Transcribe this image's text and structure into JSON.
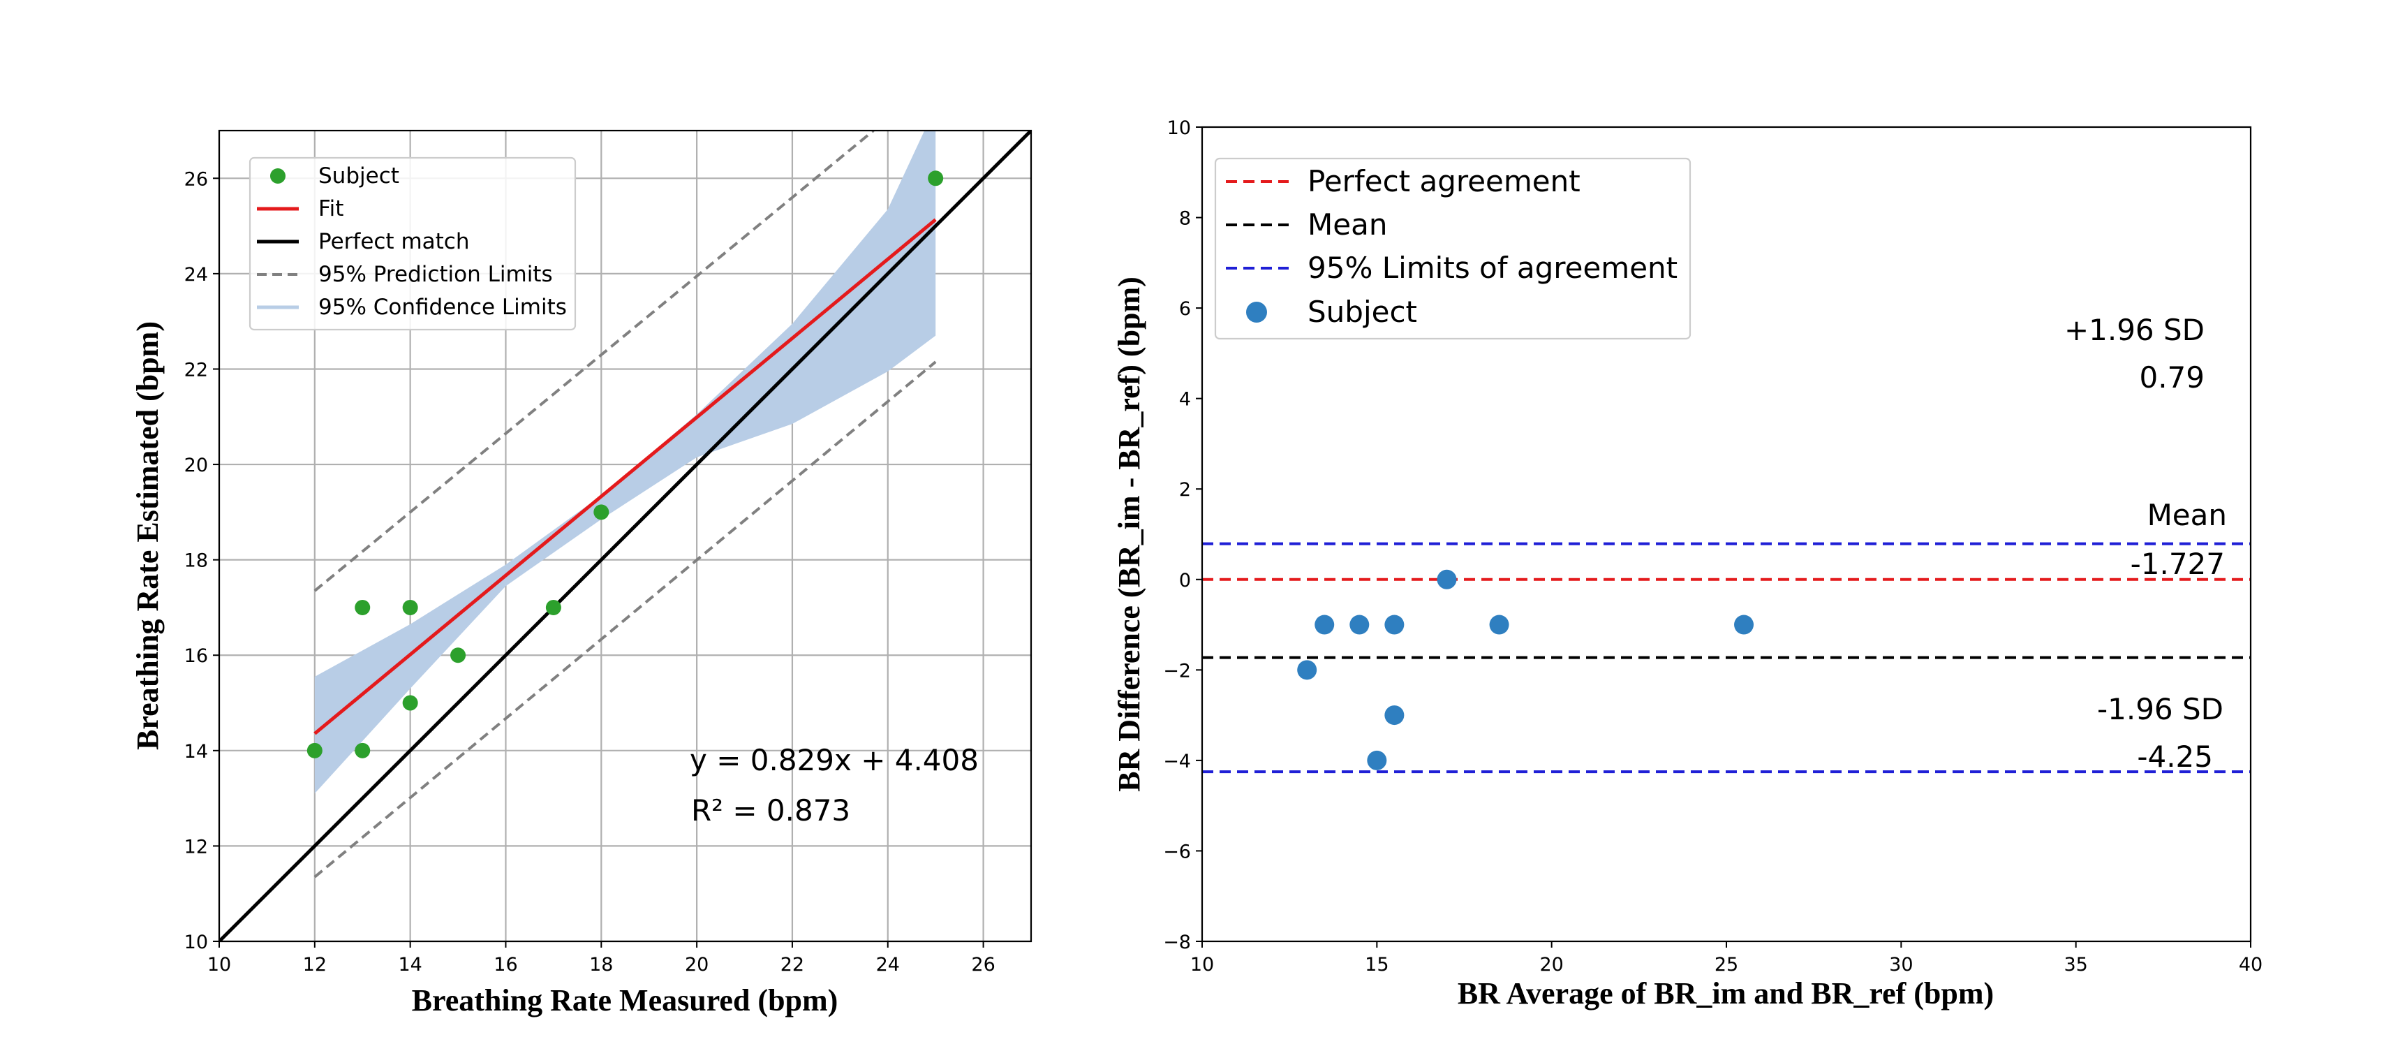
{
  "chart_data": [
    {
      "type": "scatter",
      "title": "",
      "xlabel": "Breathing Rate Measured (bpm)",
      "ylabel": "Breathing Rate Estimated (bpm)",
      "xlim": [
        10,
        27
      ],
      "ylim": [
        10,
        27
      ],
      "xticks": [
        10,
        12,
        14,
        16,
        18,
        20,
        22,
        24,
        26
      ],
      "yticks": [
        10,
        12,
        14,
        16,
        18,
        20,
        22,
        24,
        26
      ],
      "grid": true,
      "legend_position": "top-left",
      "legend": [
        "Subject",
        "Fit",
        "Perfect match",
        "95% Prediction Limits",
        "95% Confidence Limits"
      ],
      "subjects": {
        "x": [
          12,
          13,
          13,
          14,
          14,
          15,
          17,
          18,
          25
        ],
        "y": [
          14,
          14,
          17,
          15,
          17,
          16,
          17,
          19,
          26
        ]
      },
      "fit": {
        "slope": 0.829,
        "intercept": 4.408,
        "x_range": [
          12,
          25
        ]
      },
      "perfect_match": {
        "x_range": [
          10,
          27
        ]
      },
      "prediction_limits": {
        "upper": {
          "x": [
            12,
            23.7
          ],
          "y": [
            17.35,
            27
          ]
        },
        "lower": {
          "x": [
            12,
            25
          ],
          "y": [
            11.35,
            22.15
          ]
        }
      },
      "confidence_band": {
        "x": [
          12,
          14,
          16,
          18,
          20,
          22,
          24,
          25
        ],
        "upper": [
          15.55,
          16.65,
          17.9,
          19.35,
          21.05,
          22.95,
          25.35,
          27.5
        ],
        "lower": [
          13.1,
          15.3,
          17.45,
          18.85,
          20.15,
          20.85,
          21.95,
          22.7
        ]
      },
      "equation_text": "y = 0.829x + 4.408",
      "r2_text": "R² = 0.873",
      "colors": {
        "subject": "#2ca02c",
        "fit": "#e41a1c",
        "perfect": "#000000",
        "prediction": "#808080",
        "confidence": "#b8cde6"
      }
    },
    {
      "type": "scatter",
      "title": "",
      "xlabel": "BR Average of BR_im and BR_ref (bpm)",
      "ylabel": "BR Difference (BR_im - BR_ref) (bpm)",
      "xlim": [
        10,
        40
      ],
      "ylim": [
        -8,
        10
      ],
      "xticks": [
        10,
        15,
        20,
        25,
        30,
        35,
        40
      ],
      "yticks": [
        -8,
        -6,
        -4,
        -2,
        0,
        2,
        4,
        6,
        8,
        10
      ],
      "grid": false,
      "legend_position": "top-left",
      "legend": [
        "Perfect agreement",
        "Mean",
        "95% Limits of agreement",
        "Subject"
      ],
      "subjects": {
        "x": [
          13.0,
          13.5,
          14.5,
          15.5,
          17.0,
          18.5,
          25.5,
          15.5,
          15.0
        ],
        "y": [
          -2,
          -1,
          -1,
          -1,
          0,
          -1,
          -1,
          -3,
          -4
        ]
      },
      "perfect_agreement": 0,
      "mean": -1.727,
      "upper_limit": 0.79,
      "lower_limit": -4.25,
      "annotations": {
        "upper_label": "+1.96 SD",
        "upper_value": "0.79",
        "mean_label": "Mean",
        "mean_value": "-1.727",
        "lower_label": "-1.96 SD",
        "lower_value": "-4.25"
      },
      "colors": {
        "perfect": "#e41a1c",
        "mean": "#000000",
        "limits": "#1f1fd6",
        "subject": "#2f7fc0"
      }
    }
  ]
}
